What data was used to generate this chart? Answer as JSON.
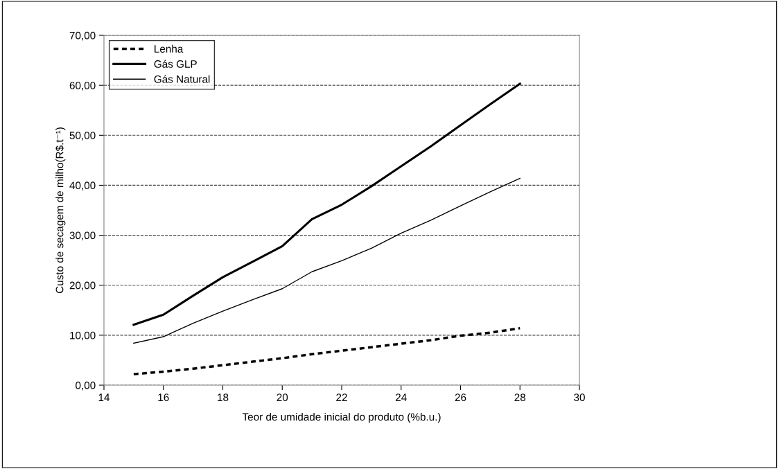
{
  "chart_data": {
    "type": "line",
    "xlabel": "Teor de umidade inicial do produto (%b.u.)",
    "ylabel": "Custo de secagem de milho(R$.t⁻¹)",
    "x": [
      15,
      16,
      17,
      18,
      19,
      20,
      21,
      22,
      23,
      24,
      25,
      26,
      27,
      28
    ],
    "series": [
      {
        "name": "Lenha",
        "color": "#000000",
        "line_style": "dashed",
        "values": [
          2.2,
          2.7,
          3.3,
          4.0,
          4.7,
          5.4,
          6.2,
          6.9,
          7.6,
          8.3,
          9.0,
          9.9,
          10.5,
          11.4
        ]
      },
      {
        "name": "Gás GLP",
        "color": "#000000",
        "line_style": "solid",
        "values": [
          12.1,
          14.1,
          17.9,
          21.6,
          24.7,
          27.8,
          33.2,
          36.1,
          39.8,
          43.8,
          47.8,
          52.0,
          56.2,
          60.3
        ]
      },
      {
        "name": "Gás Natural",
        "color": "#000000",
        "line_style": "solid",
        "values": [
          8.4,
          9.7,
          12.4,
          14.8,
          17.1,
          19.3,
          22.7,
          24.9,
          27.4,
          30.4,
          33.0,
          35.9,
          38.7,
          41.4
        ]
      }
    ],
    "xlim": [
      14,
      30
    ],
    "xticks": [
      14,
      16,
      18,
      20,
      22,
      24,
      26,
      28,
      30
    ],
    "ylim": [
      0,
      70
    ],
    "yticks": [
      {
        "value": 0,
        "label": "0,00"
      },
      {
        "value": 10,
        "label": "10,00"
      },
      {
        "value": 20,
        "label": "20,00"
      },
      {
        "value": 30,
        "label": "30,00"
      },
      {
        "value": 40,
        "label": "40,00"
      },
      {
        "value": 50,
        "label": "50,00"
      },
      {
        "value": 60,
        "label": "60,00"
      },
      {
        "value": 70,
        "label": "70,00"
      }
    ],
    "grid": "y",
    "legend": "top left",
    "marker": "none"
  }
}
